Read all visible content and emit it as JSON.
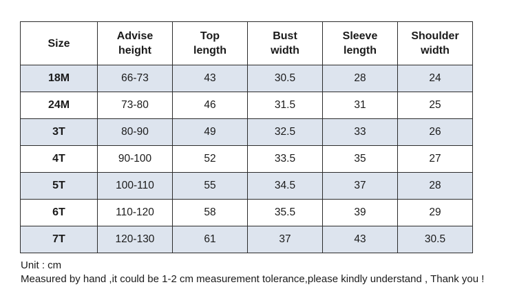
{
  "table": {
    "headers": [
      {
        "key": "size",
        "lines": [
          "Size"
        ]
      },
      {
        "key": "advise_height",
        "lines": [
          "Advise",
          "height"
        ]
      },
      {
        "key": "top_length",
        "lines": [
          "Top",
          "length"
        ]
      },
      {
        "key": "bust_width",
        "lines": [
          "Bust",
          "width"
        ]
      },
      {
        "key": "sleeve_length",
        "lines": [
          "Sleeve",
          "length"
        ]
      },
      {
        "key": "shoulder_width",
        "lines": [
          "Shoulder",
          "width"
        ]
      }
    ],
    "rows": [
      {
        "size": "18M",
        "advise_height": "66-73",
        "top_length": "43",
        "bust_width": "30.5",
        "sleeve_length": "28",
        "shoulder_width": "24"
      },
      {
        "size": "24M",
        "advise_height": "73-80",
        "top_length": "46",
        "bust_width": "31.5",
        "sleeve_length": "31",
        "shoulder_width": "25"
      },
      {
        "size": "3T",
        "advise_height": "80-90",
        "top_length": "49",
        "bust_width": "32.5",
        "sleeve_length": "33",
        "shoulder_width": "26"
      },
      {
        "size": "4T",
        "advise_height": "90-100",
        "top_length": "52",
        "bust_width": "33.5",
        "sleeve_length": "35",
        "shoulder_width": "27"
      },
      {
        "size": "5T",
        "advise_height": "100-110",
        "top_length": "55",
        "bust_width": "34.5",
        "sleeve_length": "37",
        "shoulder_width": "28"
      },
      {
        "size": "6T",
        "advise_height": "110-120",
        "top_length": "58",
        "bust_width": "35.5",
        "sleeve_length": "39",
        "shoulder_width": "29"
      },
      {
        "size": "7T",
        "advise_height": "120-130",
        "top_length": "61",
        "bust_width": "37",
        "sleeve_length": "43",
        "shoulder_width": "30.5"
      }
    ]
  },
  "notes": {
    "unit": "Unit : cm",
    "measurement": "Measured by hand ,it could be 1-2 cm measurement tolerance,please kindly understand , Thank you !"
  },
  "colors": {
    "shaded_row": "#dde4ee",
    "plain_row": "#ffffff",
    "border": "#2b2b2b"
  }
}
